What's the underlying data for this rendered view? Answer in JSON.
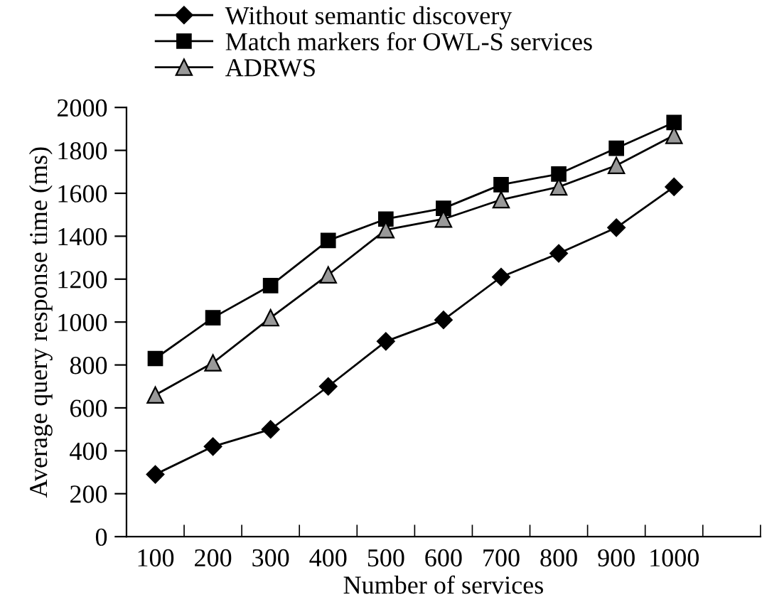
{
  "chart_data": {
    "type": "line",
    "xlabel": "Number of services",
    "ylabel": "Average query response time (ms)",
    "categories": [
      "100",
      "200",
      "300",
      "400",
      "500",
      "600",
      "700",
      "800",
      "900",
      "1000"
    ],
    "series": [
      {
        "name": "Without semantic discovery",
        "color": "#000000",
        "marker": "diamond",
        "values": [
          290,
          420,
          500,
          700,
          910,
          1010,
          1210,
          1320,
          1440,
          1630
        ]
      },
      {
        "name": "Match markers for OWL-S services",
        "color": "#000000",
        "marker": "square",
        "values": [
          830,
          1020,
          1170,
          1380,
          1480,
          1530,
          1640,
          1690,
          1810,
          1930
        ]
      },
      {
        "name": "ADRWS",
        "color": "#999999",
        "marker": "triangle",
        "values": [
          660,
          810,
          1020,
          1220,
          1430,
          1480,
          1570,
          1630,
          1730,
          1870
        ]
      }
    ],
    "ylim": [
      0,
      2000
    ],
    "yticks": [
      0,
      200,
      400,
      600,
      800,
      1000,
      1200,
      1400,
      1600,
      1800,
      2000
    ],
    "grid": false,
    "legend": "top left"
  }
}
